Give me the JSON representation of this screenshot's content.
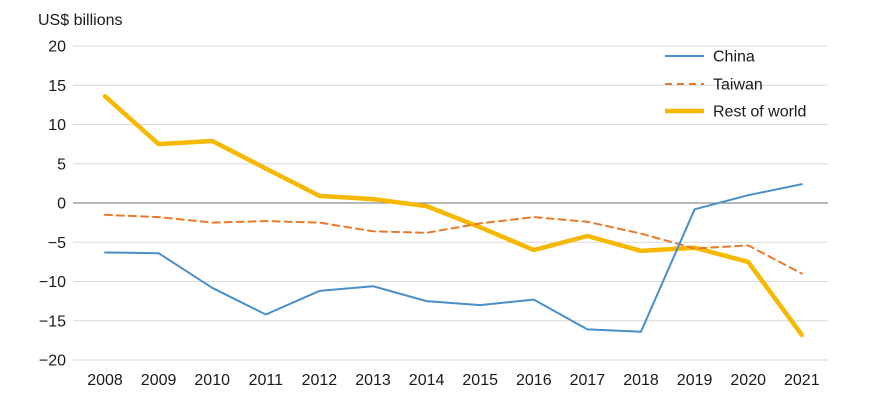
{
  "chart_data": {
    "type": "line",
    "ylabel": "US$ billions",
    "ylim": [
      -20,
      20
    ],
    "yticks": [
      20,
      15,
      10,
      5,
      0,
      -5,
      -10,
      -15,
      -20
    ],
    "ytick_labels": [
      "20",
      "15",
      "10",
      "5",
      "0",
      "−5",
      "−10",
      "−15",
      "−20"
    ],
    "x": [
      "2008",
      "2009",
      "2010",
      "2011",
      "2012",
      "2013",
      "2014",
      "2015",
      "2016",
      "2017",
      "2018",
      "2019",
      "2020",
      "2021"
    ],
    "grid": true,
    "legend_position": "top-right",
    "series": [
      {
        "name": "China",
        "style": "solid-thin",
        "color": "#4a90c8",
        "values": [
          -6.3,
          -6.4,
          -10.8,
          -14.2,
          -11.2,
          -10.6,
          -12.5,
          -13.0,
          -12.3,
          -16.1,
          -16.4,
          -0.8,
          1.0,
          2.4
        ]
      },
      {
        "name": "Taiwan",
        "style": "dashed",
        "color": "#e87a2a",
        "values": [
          -1.5,
          -1.8,
          -2.5,
          -2.3,
          -2.5,
          -3.6,
          -3.8,
          -2.6,
          -1.8,
          -2.4,
          -3.9,
          -5.8,
          -5.4,
          -9.0
        ]
      },
      {
        "name": "Rest of world",
        "style": "solid-thick",
        "color": "#f7b800",
        "values": [
          13.6,
          7.5,
          7.9,
          4.4,
          0.9,
          0.5,
          -0.4,
          -3.1,
          -6.0,
          -4.2,
          -6.1,
          -5.7,
          -7.5,
          -16.8
        ]
      }
    ]
  }
}
